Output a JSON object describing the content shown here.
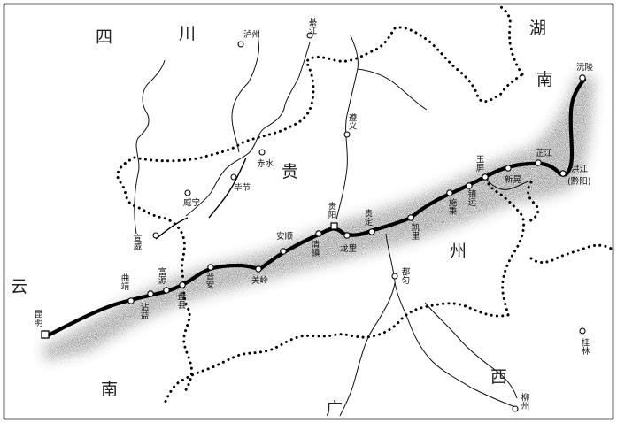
{
  "regions": {
    "sichuan_1": "四",
    "sichuan_2": "川",
    "hunan_1": "湖",
    "hunan_2": "南",
    "guizhou_1": "贵",
    "guizhou_2": "州",
    "yunnan_1": "云",
    "yunnan_2": "南",
    "guangxi_1": "广",
    "guangxi_2": "西"
  },
  "cities": {
    "luzhou": "泸州",
    "qijiang": "綦江",
    "zunyi": "遵义",
    "chishui": "赤水",
    "bijie": "毕节",
    "weining": "威宁",
    "xuanwei": "宣威",
    "qujing": "曲靖",
    "zhanyi": "沾益",
    "fuyuan": "富源",
    "panxian": "盘县",
    "puan": "普安",
    "guanling": "关岭",
    "anshun": "安顺",
    "qingzhen": "清镇",
    "guiyang": "贵阳",
    "longli": "龙里",
    "guiding": "贵定",
    "duyun": "都匀",
    "kaili": "凯里",
    "shibing": "施秉",
    "zhenyuan": "镇远",
    "yuping": "玉屏",
    "xinhuang": "新晃",
    "zhijiang": "芷江",
    "hongjiang": "洪江",
    "qianyang": "(黔阳)",
    "yuanling": "沅陵",
    "kunming": "昆明",
    "liuzhou": "柳州",
    "guilin": "桂林"
  }
}
